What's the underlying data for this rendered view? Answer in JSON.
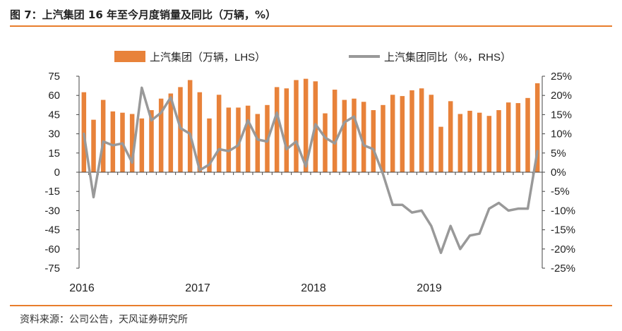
{
  "header": {
    "title": "图 7：上汽集团 16 年至今月度销量及同比（万辆，%）"
  },
  "footer": {
    "source": "资料来源：公司公告，天风证券研究所"
  },
  "colors": {
    "bar": "#e8823a",
    "line": "#999999",
    "accent_rule": "#e87d2c"
  },
  "chart_data": {
    "type": "bar+line",
    "legend_position": "top",
    "grid": false,
    "x_tick_labels": [
      "2016",
      "2017",
      "2018",
      "2019"
    ],
    "left_axis": {
      "ticks": [
        75,
        60,
        45,
        30,
        15,
        0,
        -15,
        -30,
        -45,
        -60,
        -75
      ],
      "ylim": [
        -75,
        75
      ]
    },
    "right_axis": {
      "ticks": [
        "25%",
        "20%",
        "15%",
        "10%",
        "5%",
        "0%",
        "-5%",
        "-10%",
        "-15%",
        "-20%",
        "-25%"
      ],
      "ylim": [
        -25,
        25
      ]
    },
    "series": [
      {
        "name": "上汽集团（万辆，LHS）",
        "type": "bar",
        "axis": "left",
        "values": [
          62.5,
          41,
          56.5,
          47.5,
          46.5,
          45.5,
          42,
          48.5,
          57.5,
          61.5,
          66.5,
          72,
          62.5,
          42,
          60.5,
          50.5,
          50.5,
          52,
          45.5,
          52.5,
          66.5,
          65.5,
          72,
          73,
          71,
          46,
          64.5,
          56.5,
          57.5,
          55,
          48.5,
          52.5,
          60.5,
          59.5,
          64,
          65.5,
          60.5,
          35.5,
          55.5,
          45.5,
          48,
          46.5,
          44,
          48.5,
          54.5,
          54,
          58,
          69.5
        ]
      },
      {
        "name": "上汽集团同比（%，RHS）",
        "type": "line",
        "axis": "right",
        "values": [
          10,
          -6.5,
          8,
          7,
          7.5,
          2.5,
          22,
          13.5,
          15.5,
          19.5,
          11.5,
          10,
          0.5,
          2,
          6,
          5.5,
          7,
          13.5,
          8.5,
          8,
          15.5,
          6,
          8,
          1.5,
          12.5,
          9,
          7.5,
          13,
          14.5,
          7,
          6,
          -0.5,
          -8.5,
          -8.5,
          -10.5,
          -10,
          -14,
          -21,
          -14,
          -20,
          -16.5,
          -16,
          -9.5,
          -8,
          -10,
          -9.5,
          -9.5,
          5.5
        ]
      }
    ]
  }
}
